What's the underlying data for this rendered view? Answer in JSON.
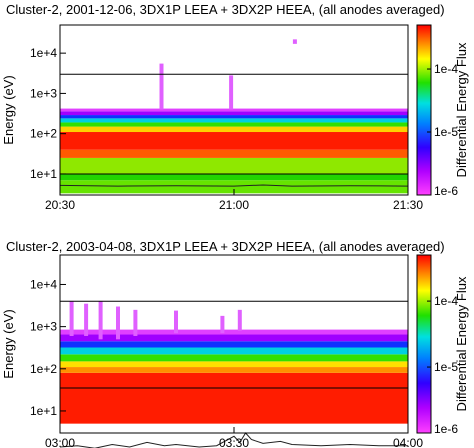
{
  "chart_data": [
    {
      "type": "heatmap",
      "title": "Cluster-2,  2001-12-06,  3DX1P LEEA + 3DX2P HEEA,  (all anodes averaged)",
      "xlabel": "",
      "ylabel": "Energy (eV)",
      "colorbar_label": "Differential Energy Flux",
      "colorbar_ticks": [
        "1e-4",
        "1e-5",
        "1e-6"
      ],
      "colorbar_range": [
        1e-06,
        0.0005
      ],
      "x_ticks": [
        "20:30",
        "21:00",
        "21:30"
      ],
      "y_ticks": [
        {
          "label": "1e+4",
          "value": 10000
        },
        {
          "label": "1e+3",
          "value": 1000
        },
        {
          "label": "1e+2",
          "value": 100
        },
        {
          "label": "1e+1",
          "value": 10
        }
      ],
      "ylim": [
        3,
        50000
      ],
      "yscale": "log",
      "xlim_minutes": [
        0,
        60
      ],
      "boundary_lines_eV": [
        3000,
        10
      ],
      "bands": [
        {
          "e_min": 3.3,
          "e_max": 7,
          "color": "#66e400"
        },
        {
          "e_min": 7,
          "e_max": 10,
          "color": "#22d400"
        },
        {
          "e_min": 10,
          "e_max": 25,
          "color": "#8fe800"
        },
        {
          "e_min": 25,
          "e_max": 40,
          "color": "#ff5a00"
        },
        {
          "e_min": 40,
          "e_max": 110,
          "color": "#ff1c00"
        },
        {
          "e_min": 110,
          "e_max": 150,
          "color": "#ffd000"
        },
        {
          "e_min": 150,
          "e_max": 190,
          "color": "#33e000"
        },
        {
          "e_min": 190,
          "e_max": 240,
          "color": "#00d0e0"
        },
        {
          "e_min": 240,
          "e_max": 290,
          "color": "#1030ff"
        },
        {
          "e_min": 290,
          "e_max": 360,
          "color": "#a000ff"
        },
        {
          "e_min": 360,
          "e_max": 420,
          "color": "#e040ff"
        }
      ],
      "spikes": [
        {
          "minute": 17.5,
          "e_min": 400,
          "e_max": 5500,
          "color": "#e060ff"
        },
        {
          "minute": 29.5,
          "e_min": 400,
          "e_max": 2800,
          "color": "#e060ff"
        },
        {
          "minute": 40.5,
          "e_min": 17000,
          "e_max": 22000,
          "color": "#e060ff"
        }
      ],
      "trace": {
        "color": "#222222",
        "points": [
          [
            0,
            5.2
          ],
          [
            10,
            5.0
          ],
          [
            20,
            5.1
          ],
          [
            30,
            5.0
          ],
          [
            35,
            5.3
          ],
          [
            40,
            5.0
          ],
          [
            50,
            5.1
          ],
          [
            60,
            5.0
          ]
        ]
      }
    },
    {
      "type": "heatmap",
      "title": "Cluster-2,  2003-04-08,  3DX1P LEEA + 3DX2P HEEA,  (all anodes averaged)",
      "xlabel": "",
      "ylabel": "Energy (eV)",
      "colorbar_label": "Differential Energy Flux",
      "colorbar_ticks": [
        "1e-4",
        "1e-5",
        "1e-6"
      ],
      "colorbar_range": [
        1e-06,
        0.0005
      ],
      "x_ticks": [
        "03:00",
        "03:30",
        "04:00"
      ],
      "y_ticks": [
        {
          "label": "1e+4",
          "value": 10000
        },
        {
          "label": "1e+3",
          "value": 1000
        },
        {
          "label": "1e+2",
          "value": 100
        },
        {
          "label": "1e+1",
          "value": 10
        }
      ],
      "ylim": [
        3,
        50000
      ],
      "yscale": "log",
      "xlim_minutes": [
        0,
        60
      ],
      "boundary_lines_eV": [
        4000,
        35
      ],
      "bands": [
        {
          "e_min": 5,
          "e_max": 80,
          "color": "#ff1c00"
        },
        {
          "e_min": 80,
          "e_max": 110,
          "color": "#ff9000"
        },
        {
          "e_min": 110,
          "e_max": 150,
          "color": "#ffe000"
        },
        {
          "e_min": 150,
          "e_max": 220,
          "color": "#33e000"
        },
        {
          "e_min": 220,
          "e_max": 320,
          "color": "#00d0e0"
        },
        {
          "e_min": 320,
          "e_max": 450,
          "color": "#1030ff"
        },
        {
          "e_min": 450,
          "e_max": 650,
          "color": "#a000ff"
        },
        {
          "e_min": 650,
          "e_max": 850,
          "color": "#e040ff"
        }
      ],
      "spikes": [
        {
          "minute": 2.0,
          "e_min": 600,
          "e_max": 4000,
          "color": "#e060ff"
        },
        {
          "minute": 4.5,
          "e_min": 600,
          "e_max": 3500,
          "color": "#e060ff"
        },
        {
          "minute": 7.0,
          "e_min": 500,
          "e_max": 4000,
          "color": "#e060ff"
        },
        {
          "minute": 10.0,
          "e_min": 500,
          "e_max": 3000,
          "color": "#e060ff"
        },
        {
          "minute": 13.0,
          "e_min": 600,
          "e_max": 2500,
          "color": "#e060ff"
        },
        {
          "minute": 20.0,
          "e_min": 700,
          "e_max": 2400,
          "color": "#e060ff"
        },
        {
          "minute": 28.0,
          "e_min": 700,
          "e_max": 1800,
          "color": "#e060ff"
        },
        {
          "minute": 31.0,
          "e_min": 800,
          "e_max": 2500,
          "color": "#e060ff"
        }
      ],
      "trace": {
        "color": "#222222",
        "points": [
          [
            0,
            1.4
          ],
          [
            3,
            1.5
          ],
          [
            6,
            1.3
          ],
          [
            9,
            1.6
          ],
          [
            12,
            1.4
          ],
          [
            15,
            1.8
          ],
          [
            18,
            1.5
          ],
          [
            20,
            1.6
          ],
          [
            24,
            1.4
          ],
          [
            27,
            1.5
          ],
          [
            30,
            2.5
          ],
          [
            31,
            1.8
          ],
          [
            32,
            3.0
          ],
          [
            33,
            2.1
          ],
          [
            35,
            1.7
          ],
          [
            38,
            1.9
          ],
          [
            40,
            1.6
          ],
          [
            45,
            1.5
          ],
          [
            50,
            1.6
          ],
          [
            55,
            1.5
          ],
          [
            60,
            1.5
          ]
        ]
      }
    }
  ]
}
